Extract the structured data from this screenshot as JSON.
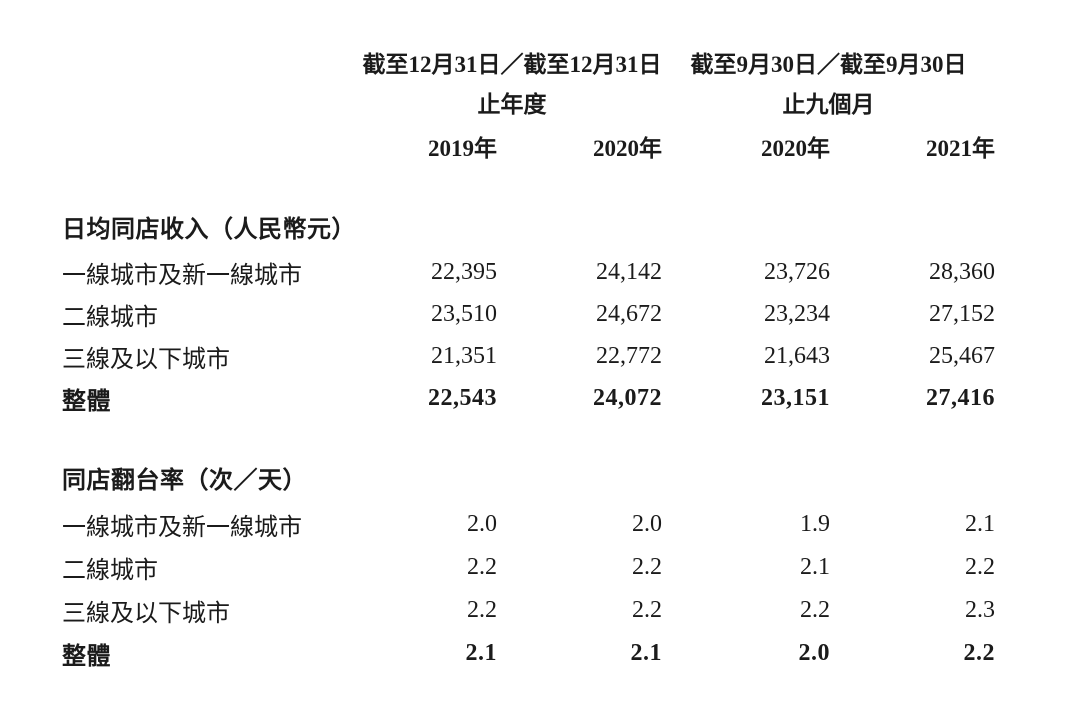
{
  "table": {
    "header": {
      "annual_group_line1": "截至12月31日／截至12月31日",
      "annual_group_line2": "止年度",
      "nine_month_group_line1": "截至9月30日／截至9月30日",
      "nine_month_group_line2": "止九個月",
      "year_columns": [
        "2019年",
        "2020年",
        "2020年",
        "2021年"
      ]
    },
    "sections": [
      {
        "title": "日均同店收入（人民幣元）",
        "rows": [
          {
            "label": "一線城市及新一線城市",
            "values": [
              "22,395",
              "24,142",
              "23,726",
              "28,360"
            ]
          },
          {
            "label": "二線城市",
            "values": [
              "23,510",
              "24,672",
              "23,234",
              "27,152"
            ]
          },
          {
            "label": "三線及以下城市",
            "values": [
              "21,351",
              "22,772",
              "21,643",
              "25,467"
            ]
          },
          {
            "label": "整體",
            "values": [
              "22,543",
              "24,072",
              "23,151",
              "27,416"
            ]
          }
        ]
      },
      {
        "title": "同店翻台率（次／天）",
        "rows": [
          {
            "label": "一線城市及新一線城市",
            "values": [
              "2.0",
              "2.0",
              "1.9",
              "2.1"
            ]
          },
          {
            "label": "二線城市",
            "values": [
              "2.2",
              "2.2",
              "2.1",
              "2.2"
            ]
          },
          {
            "label": "三線及以下城市",
            "values": [
              "2.2",
              "2.2",
              "2.2",
              "2.3"
            ]
          },
          {
            "label": "整體",
            "values": [
              "2.1",
              "2.1",
              "2.0",
              "2.2"
            ]
          }
        ]
      }
    ]
  }
}
